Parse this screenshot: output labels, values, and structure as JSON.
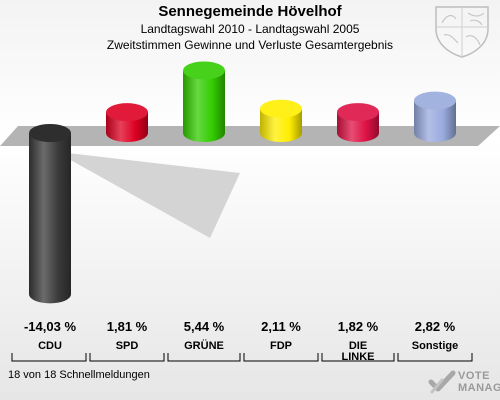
{
  "header": {
    "title": "Sennegemeinde Hövelhof",
    "subtitle1": "Landtagswahl 2010 - Landtagswahl 2005",
    "subtitle2": "Zweitstimmen Gewinne und Verluste Gesamtergebnis"
  },
  "footer": {
    "note": "18 von 18 Schnellmeldungen",
    "brand_line1": "VOTE",
    "brand_line2": "MANAGER"
  },
  "chart_data": {
    "type": "bar",
    "categories": [
      "CDU",
      "SPD",
      "GRÜNE",
      "FDP",
      "DIE LINKE",
      "Sonstige"
    ],
    "values": [
      -14.03,
      1.81,
      5.44,
      2.11,
      1.82,
      2.82
    ],
    "value_labels": [
      "-14,03 %",
      "1,81 %",
      "5,44 %",
      "2,11 %",
      "1,82 %",
      "2,82 %"
    ],
    "colors": [
      "#3a3a3a",
      "#dd0022",
      "#33cc00",
      "#ffee00",
      "#dd1144",
      "#99aadd"
    ],
    "baseline": 0
  }
}
